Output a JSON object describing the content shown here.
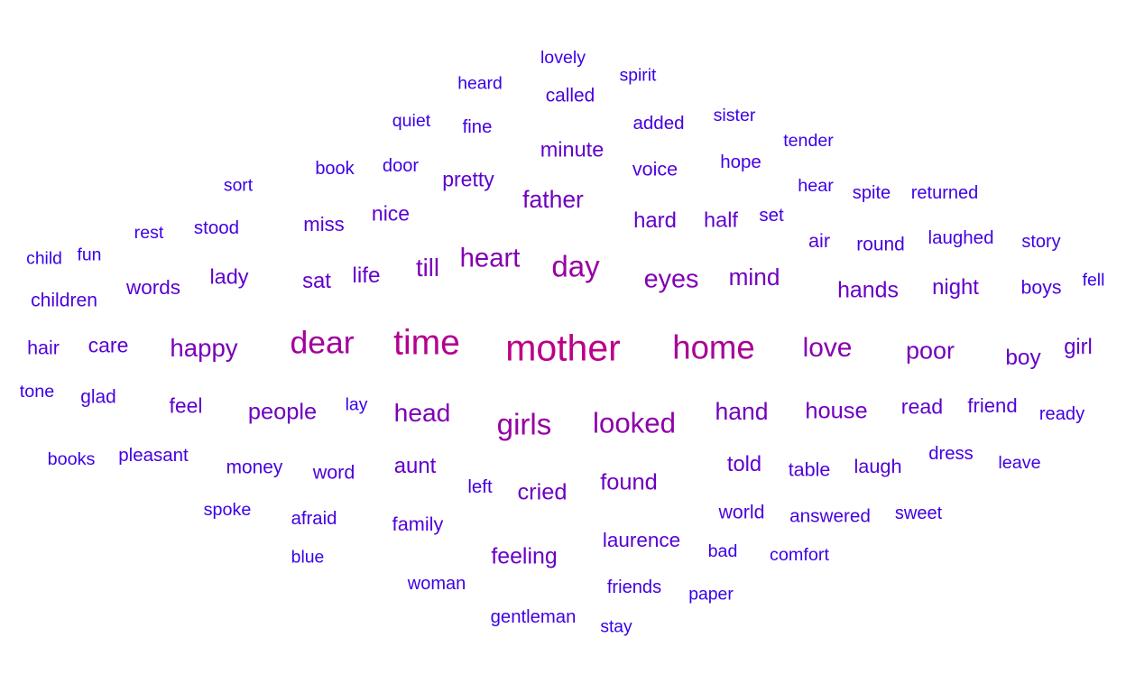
{
  "word_cloud": {
    "colors": {
      "low": "#3300ee",
      "high": "#bb0088"
    },
    "words": [
      {
        "text": "mother",
        "weight": 1.0
      },
      {
        "text": "time",
        "weight": 0.95
      },
      {
        "text": "home",
        "weight": 0.88
      },
      {
        "text": "dear",
        "weight": 0.85
      },
      {
        "text": "girls",
        "weight": 0.78
      },
      {
        "text": "day",
        "weight": 0.78
      },
      {
        "text": "looked",
        "weight": 0.72
      },
      {
        "text": "love",
        "weight": 0.68
      },
      {
        "text": "heart",
        "weight": 0.66
      },
      {
        "text": "eyes",
        "weight": 0.64
      },
      {
        "text": "head",
        "weight": 0.62
      },
      {
        "text": "happy",
        "weight": 0.6
      },
      {
        "text": "till",
        "weight": 0.6
      },
      {
        "text": "poor",
        "weight": 0.58
      },
      {
        "text": "hand",
        "weight": 0.56
      },
      {
        "text": "father",
        "weight": 0.56
      },
      {
        "text": "mind",
        "weight": 0.55
      },
      {
        "text": "house",
        "weight": 0.52
      },
      {
        "text": "people",
        "weight": 0.52
      },
      {
        "text": "cried",
        "weight": 0.52
      },
      {
        "text": "found",
        "weight": 0.52
      },
      {
        "text": "hands",
        "weight": 0.5
      },
      {
        "text": "feeling",
        "weight": 0.5
      },
      {
        "text": "life",
        "weight": 0.48
      },
      {
        "text": "boy",
        "weight": 0.48
      },
      {
        "text": "night",
        "weight": 0.46
      },
      {
        "text": "sat",
        "weight": 0.46
      },
      {
        "text": "hard",
        "weight": 0.46
      },
      {
        "text": "aunt",
        "weight": 0.46
      },
      {
        "text": "girl",
        "weight": 0.45
      },
      {
        "text": "told",
        "weight": 0.45
      },
      {
        "text": "minute",
        "weight": 0.44
      },
      {
        "text": "lady",
        "weight": 0.44
      },
      {
        "text": "half",
        "weight": 0.44
      },
      {
        "text": "read",
        "weight": 0.43
      },
      {
        "text": "pretty",
        "weight": 0.42
      },
      {
        "text": "nice",
        "weight": 0.42
      },
      {
        "text": "feel",
        "weight": 0.42
      },
      {
        "text": "care",
        "weight": 0.42
      },
      {
        "text": "words",
        "weight": 0.4
      },
      {
        "text": "laurence",
        "weight": 0.4
      },
      {
        "text": "friend",
        "weight": 0.38
      },
      {
        "text": "miss",
        "weight": 0.38
      },
      {
        "text": "laugh",
        "weight": 0.36
      },
      {
        "text": "air",
        "weight": 0.36
      },
      {
        "text": "family",
        "weight": 0.36
      },
      {
        "text": "table",
        "weight": 0.35
      },
      {
        "text": "voice",
        "weight": 0.35
      },
      {
        "text": "hair",
        "weight": 0.35
      },
      {
        "text": "word",
        "weight": 0.35
      },
      {
        "text": "world",
        "weight": 0.34
      },
      {
        "text": "boys",
        "weight": 0.34
      },
      {
        "text": "children",
        "weight": 0.33
      },
      {
        "text": "called",
        "weight": 0.32
      },
      {
        "text": "money",
        "weight": 0.32
      },
      {
        "text": "round",
        "weight": 0.32
      },
      {
        "text": "glad",
        "weight": 0.32
      },
      {
        "text": "answered",
        "weight": 0.31
      },
      {
        "text": "hope",
        "weight": 0.3
      },
      {
        "text": "added",
        "weight": 0.3
      },
      {
        "text": "left",
        "weight": 0.3
      },
      {
        "text": "laughed",
        "weight": 0.3
      },
      {
        "text": "set",
        "weight": 0.3
      },
      {
        "text": "pleasant",
        "weight": 0.3
      },
      {
        "text": "stood",
        "weight": 0.3
      },
      {
        "text": "dress",
        "weight": 0.29
      },
      {
        "text": "gentleman",
        "weight": 0.29
      },
      {
        "text": "afraid",
        "weight": 0.29
      },
      {
        "text": "fine",
        "weight": 0.29
      },
      {
        "text": "ready",
        "weight": 0.28
      },
      {
        "text": "spite",
        "weight": 0.28
      },
      {
        "text": "friends",
        "weight": 0.28
      },
      {
        "text": "door",
        "weight": 0.28
      },
      {
        "text": "sweet",
        "weight": 0.27
      },
      {
        "text": "story",
        "weight": 0.27
      },
      {
        "text": "returned",
        "weight": 0.27
      },
      {
        "text": "book",
        "weight": 0.27
      },
      {
        "text": "woman",
        "weight": 0.27
      },
      {
        "text": "tone",
        "weight": 0.26
      },
      {
        "text": "spoke",
        "weight": 0.26
      },
      {
        "text": "leave",
        "weight": 0.26
      },
      {
        "text": "comfort",
        "weight": 0.26
      },
      {
        "text": "hear",
        "weight": 0.26
      },
      {
        "text": "books",
        "weight": 0.26
      },
      {
        "text": "rest",
        "weight": 0.25
      },
      {
        "text": "bad",
        "weight": 0.25
      },
      {
        "text": "quiet",
        "weight": 0.25
      },
      {
        "text": "lovely",
        "weight": 0.25
      },
      {
        "text": "sister",
        "weight": 0.25
      },
      {
        "text": "tender",
        "weight": 0.25
      },
      {
        "text": "heard",
        "weight": 0.24
      },
      {
        "text": "fell",
        "weight": 0.24
      },
      {
        "text": "paper",
        "weight": 0.24
      },
      {
        "text": "blue",
        "weight": 0.24
      },
      {
        "text": "lay",
        "weight": 0.24
      },
      {
        "text": "fun",
        "weight": 0.24
      },
      {
        "text": "sort",
        "weight": 0.23
      },
      {
        "text": "stay",
        "weight": 0.23
      },
      {
        "text": "child",
        "weight": 0.23
      },
      {
        "text": "spirit",
        "weight": 0.23
      }
    ]
  }
}
